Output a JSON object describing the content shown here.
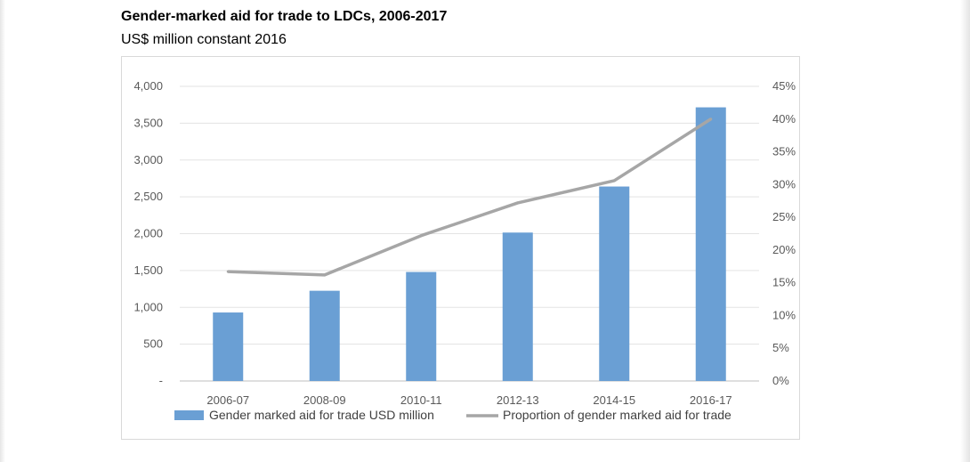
{
  "title": "Gender-marked aid for trade to LDCs, 2006-2017",
  "subtitle": "US$ million constant 2016",
  "chart_data": {
    "type": "bar",
    "title": "Gender-marked aid for trade to LDCs, 2006-2017",
    "subtitle": "US$ million constant 2016",
    "categories": [
      "2006-07",
      "2008-09",
      "2010-11",
      "2012-13",
      "2014-15",
      "2016-17"
    ],
    "series": [
      {
        "name": "Gender marked aid for trade USD million",
        "type": "bar",
        "axis": "left",
        "color": "#6a9fd4",
        "values": [
          930,
          1225,
          1480,
          2015,
          2640,
          3715
        ]
      },
      {
        "name": "Proportion of gender marked aid for trade",
        "type": "line",
        "axis": "right",
        "color": "#a6a6a6",
        "values": [
          0.167,
          0.162,
          0.222,
          0.272,
          0.306,
          0.4
        ]
      }
    ],
    "y_left": {
      "ylim": [
        0,
        4000
      ],
      "ticks": [
        0,
        500,
        1000,
        1500,
        2000,
        2500,
        3000,
        3500,
        4000
      ],
      "tick_labels": [
        "-",
        "500",
        "1,000",
        "1,500",
        "2,000",
        "2,500",
        "3,000",
        "3,500",
        "4,000"
      ]
    },
    "y_right": {
      "ylim": [
        0,
        0.45
      ],
      "ticks": [
        0,
        0.05,
        0.1,
        0.15,
        0.2,
        0.25,
        0.3,
        0.35,
        0.4,
        0.45
      ],
      "tick_labels": [
        "0%",
        "5%",
        "10%",
        "15%",
        "20%",
        "25%",
        "30%",
        "35%",
        "40%",
        "45%"
      ]
    },
    "grid": true,
    "legend_position": "bottom"
  }
}
